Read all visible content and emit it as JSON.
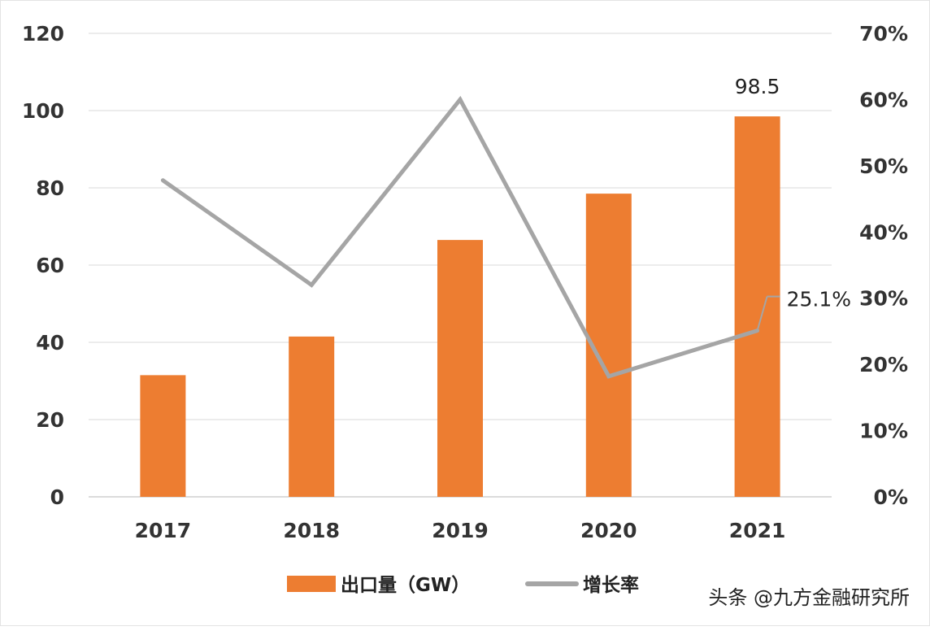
{
  "chart_data": {
    "type": "bar",
    "categories": [
      "2017",
      "2018",
      "2019",
      "2020",
      "2021"
    ],
    "series": [
      {
        "name": "出口量（GW）",
        "type": "bar",
        "axis": "left",
        "values": [
          31.5,
          41.5,
          66.5,
          78.5,
          98.5
        ],
        "color": "#ED7D31"
      },
      {
        "name": "增长率",
        "type": "line",
        "axis": "right",
        "values": [
          0.478,
          0.32,
          0.6,
          0.182,
          0.251
        ],
        "color": "#A5A5A5"
      }
    ],
    "y_left": {
      "lim": [
        0,
        120
      ],
      "ticks": [
        0,
        20,
        40,
        60,
        80,
        100,
        120
      ],
      "tick_labels": [
        "0",
        "20",
        "40",
        "60",
        "80",
        "100",
        "120"
      ]
    },
    "y_right": {
      "lim": [
        0,
        0.7
      ],
      "ticks": [
        0,
        0.1,
        0.2,
        0.3,
        0.4,
        0.5,
        0.6,
        0.7
      ],
      "tick_labels": [
        "0%",
        "10%",
        "20%",
        "30%",
        "40%",
        "50%",
        "60%",
        "70%"
      ]
    },
    "data_labels": {
      "bar_last": "98.5",
      "line_last": "25.1%"
    },
    "grid": true,
    "legend_position": "bottom",
    "title": "",
    "xlabel": "",
    "ylabel": ""
  },
  "watermark": "头条 @九方金融研究所"
}
